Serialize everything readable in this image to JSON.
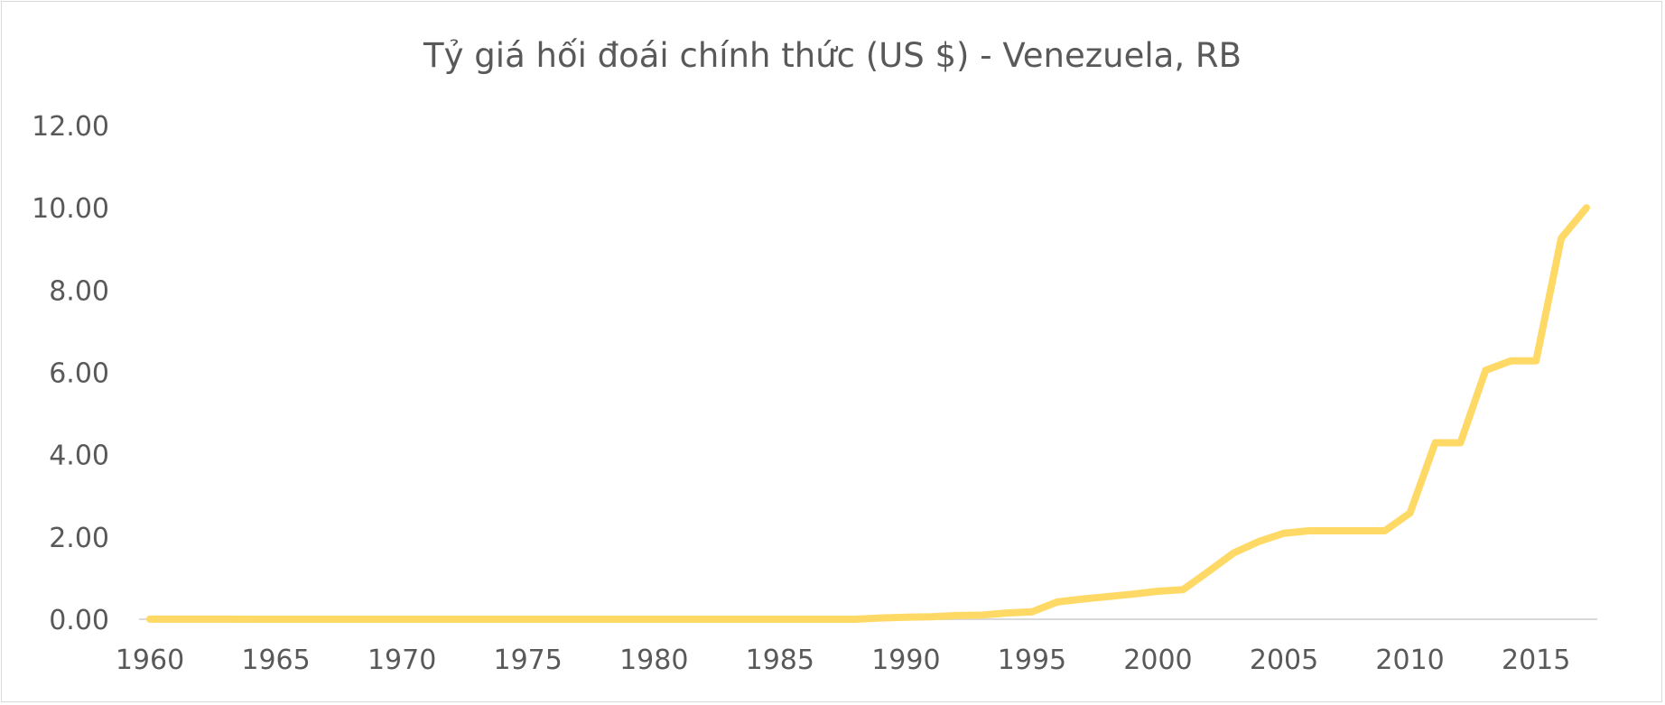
{
  "chart_data": {
    "type": "line",
    "title": "Tỷ giá hối đoái chính thức (US $) - Venezuela, RB",
    "xlabel": "",
    "ylabel": "",
    "xlim": [
      1960,
      2017
    ],
    "ylim": [
      0,
      12
    ],
    "x_ticks": [
      1960,
      1965,
      1970,
      1975,
      1980,
      1985,
      1990,
      1995,
      2000,
      2005,
      2010,
      2015
    ],
    "y_ticks": [
      "0.00",
      "2.00",
      "4.00",
      "6.00",
      "8.00",
      "10.00",
      "12.00"
    ],
    "grid": false,
    "legend": "none",
    "line_color": "#ffd966",
    "series": [
      {
        "x": [
          1960,
          1961,
          1962,
          1963,
          1964,
          1965,
          1966,
          1967,
          1968,
          1969,
          1970,
          1971,
          1972,
          1973,
          1974,
          1975,
          1976,
          1977,
          1978,
          1979,
          1980,
          1981,
          1982,
          1983,
          1984,
          1985,
          1986,
          1987,
          1988,
          1989,
          1990,
          1991,
          1992,
          1993,
          1994,
          1995,
          1996,
          1997,
          1998,
          1999,
          2000,
          2001,
          2002,
          2003,
          2004,
          2005,
          2006,
          2007,
          2008,
          2009,
          2010,
          2011,
          2012,
          2013,
          2014,
          2015,
          2016,
          2017
        ],
        "values": [
          0.003,
          0.003,
          0.003,
          0.003,
          0.0,
          0.0,
          0.0,
          0.0,
          0.0,
          0.0,
          0.0,
          0.0,
          0.0,
          0.0,
          0.0,
          0.0,
          0.0,
          0.0,
          0.0,
          0.0,
          0.0,
          0.0,
          0.0,
          0.0,
          0.0,
          0.0,
          0.0,
          0.0,
          0.0,
          0.03,
          0.05,
          0.06,
          0.09,
          0.1,
          0.15,
          0.18,
          0.42,
          0.49,
          0.55,
          0.61,
          0.68,
          0.72,
          1.16,
          1.61,
          1.89,
          2.09,
          2.15,
          2.15,
          2.15,
          2.15,
          2.58,
          4.29,
          4.29,
          6.05,
          6.28,
          6.28,
          9.26,
          10.0
        ]
      }
    ]
  }
}
